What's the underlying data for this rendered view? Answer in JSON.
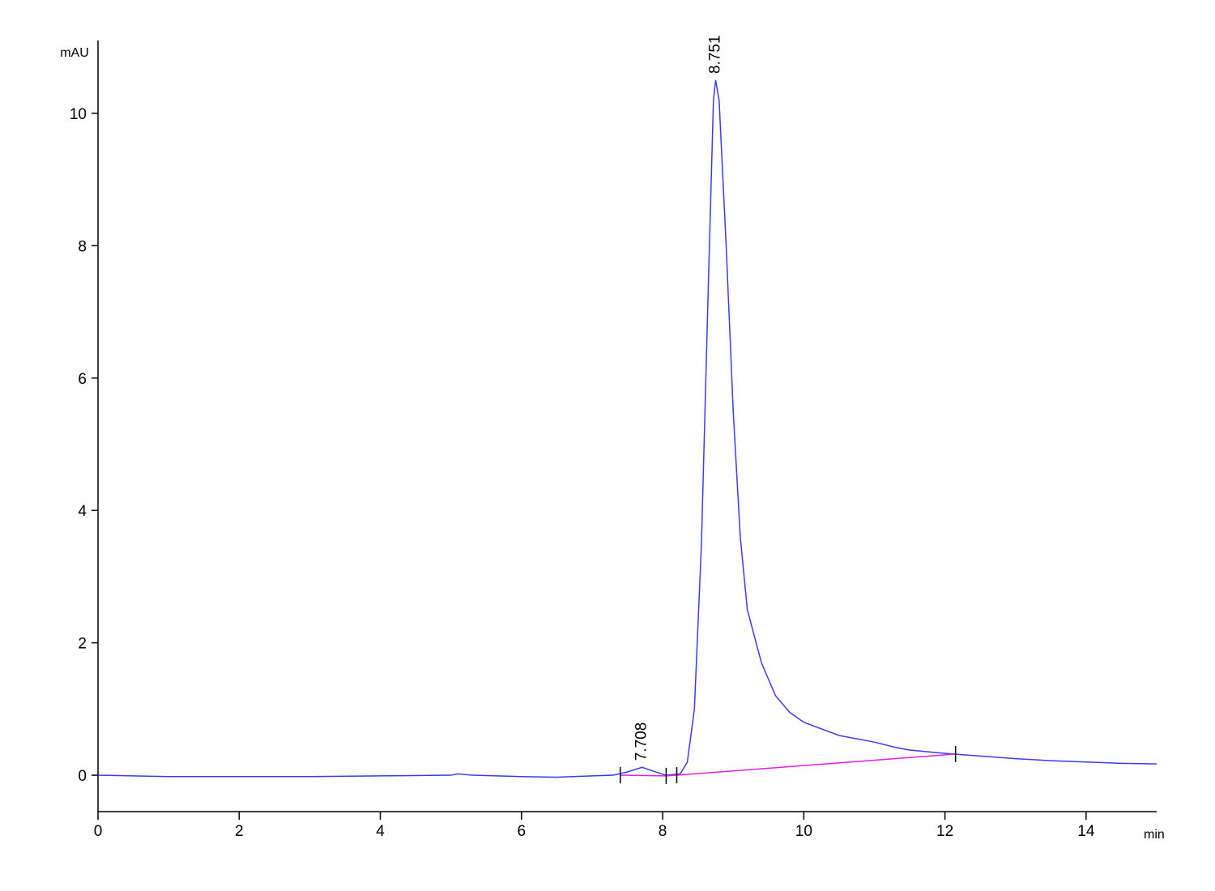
{
  "chart_data": {
    "type": "line",
    "y_label": "mAU",
    "x_label": "min",
    "xlim": [
      0,
      15
    ],
    "ylim": [
      -0.55,
      11.1
    ],
    "xticks": [
      0,
      2,
      4,
      6,
      8,
      10,
      12,
      14
    ],
    "yticks": [
      0,
      2,
      4,
      6,
      8,
      10
    ],
    "series": [
      {
        "name": "signal",
        "color": "#3b3bf0",
        "x": [
          0,
          1,
          2,
          3,
          4,
          5,
          5.1,
          5.3,
          6,
          6.5,
          7,
          7.3,
          7.5,
          7.708,
          7.9,
          8.05,
          8.25,
          8.35,
          8.45,
          8.55,
          8.65,
          8.72,
          8.751,
          8.8,
          8.9,
          9.0,
          9.1,
          9.2,
          9.4,
          9.6,
          9.8,
          10,
          10.5,
          11,
          11.3,
          11.5,
          11.7,
          12,
          12.5,
          13,
          13.5,
          14,
          14.5,
          15
        ],
        "values": [
          0,
          -0.02,
          -0.02,
          -0.02,
          -0.01,
          0,
          0.02,
          0,
          -0.02,
          -0.03,
          -0.01,
          0,
          0.05,
          0.12,
          0.05,
          0,
          0.02,
          0.2,
          1.0,
          3.5,
          7.5,
          10.2,
          10.5,
          10.2,
          8.0,
          5.5,
          3.6,
          2.5,
          1.7,
          1.2,
          0.95,
          0.8,
          0.6,
          0.5,
          0.42,
          0.38,
          0.36,
          0.33,
          0.29,
          0.25,
          0.22,
          0.2,
          0.18,
          0.17
        ]
      },
      {
        "name": "baseline",
        "color": "#e020e0",
        "x": [
          7.4,
          8.05,
          8.2,
          12.15
        ],
        "values": [
          0,
          -0.01,
          0,
          0.32
        ]
      }
    ],
    "annotations": [
      {
        "text": "7.708",
        "x": 7.708,
        "y": 0.12
      },
      {
        "text": "8.751",
        "x": 8.751,
        "y": 10.5
      }
    ]
  }
}
